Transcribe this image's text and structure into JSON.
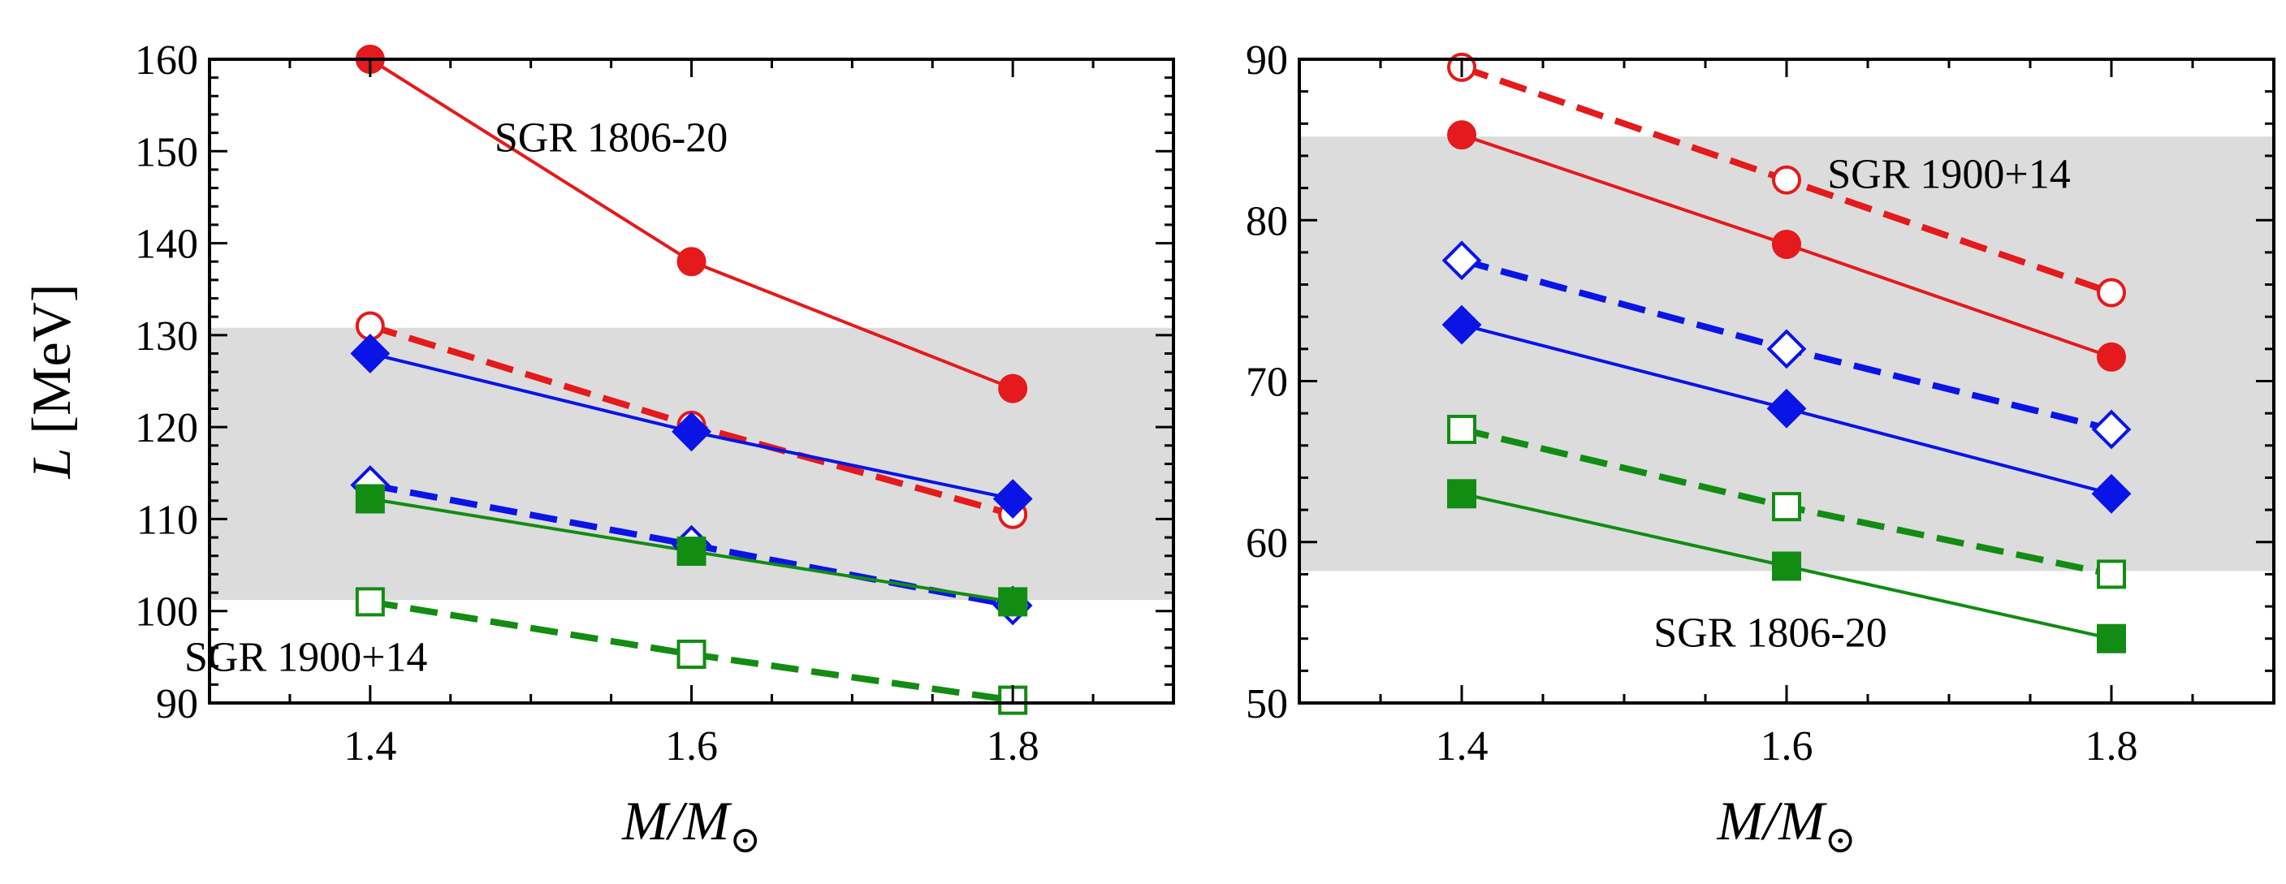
{
  "chart_data": [
    {
      "type": "line",
      "ylabel_italic": "L",
      "ylabel_rest": " [MeV]",
      "xlabel_main": "M/M",
      "xlabel_sub": "⊙",
      "xlim": [
        1.3,
        1.9
      ],
      "ylim": [
        90,
        160
      ],
      "xticks": [
        1.4,
        1.6,
        1.8
      ],
      "yticks": [
        90,
        100,
        110,
        120,
        130,
        140,
        150,
        160
      ],
      "band": [
        101.2,
        130.8
      ],
      "band_color": "#dcdcdc",
      "x": [
        1.4,
        1.6,
        1.8
      ],
      "annotations": [
        {
          "text": "SGR 1806-20",
          "x": 1.55,
          "y": 150
        },
        {
          "text": "SGR 1900+14",
          "x": 1.36,
          "y": 93.5
        }
      ],
      "series": [
        {
          "values": [
            160,
            138,
            124.2
          ],
          "color": "#e41a1c",
          "marker": "circle",
          "filled": true,
          "dashed": false
        },
        {
          "values": [
            131,
            120.2,
            110.5
          ],
          "color": "#e41a1c",
          "marker": "circle",
          "filled": false,
          "dashed": true
        },
        {
          "values": [
            128,
            119.5,
            112.2
          ],
          "color": "#0a14e6",
          "marker": "diamond",
          "filled": true,
          "dashed": false
        },
        {
          "values": [
            113.7,
            107.2,
            100.6
          ],
          "color": "#0a14e6",
          "marker": "diamond",
          "filled": false,
          "dashed": true
        },
        {
          "values": [
            112.2,
            106.5,
            101
          ],
          "color": "#128c12",
          "marker": "square",
          "filled": true,
          "dashed": false
        },
        {
          "values": [
            101,
            95.3,
            90.3
          ],
          "color": "#128c12",
          "marker": "square",
          "filled": false,
          "dashed": true
        }
      ]
    },
    {
      "type": "line",
      "xlabel_main": "M/M",
      "xlabel_sub": "⊙",
      "xlim": [
        1.3,
        1.9
      ],
      "ylim": [
        50,
        90
      ],
      "xticks": [
        1.4,
        1.6,
        1.8
      ],
      "yticks": [
        50,
        60,
        70,
        80,
        90
      ],
      "band": [
        58.2,
        85.2
      ],
      "band_color": "#dcdcdc",
      "x": [
        1.4,
        1.6,
        1.8
      ],
      "annotations": [
        {
          "text": "SGR 1900+14",
          "x": 1.7,
          "y": 82
        },
        {
          "text": "SGR 1806-20",
          "x": 1.59,
          "y": 53.5
        }
      ],
      "series": [
        {
          "values": [
            89.5,
            82.5,
            75.5
          ],
          "color": "#e41a1c",
          "marker": "circle",
          "filled": false,
          "dashed": true
        },
        {
          "values": [
            85.3,
            78.5,
            71.5
          ],
          "color": "#e41a1c",
          "marker": "circle",
          "filled": true,
          "dashed": false
        },
        {
          "values": [
            77.5,
            72,
            67
          ],
          "color": "#0a14e6",
          "marker": "diamond",
          "filled": false,
          "dashed": true
        },
        {
          "values": [
            73.5,
            68.3,
            63
          ],
          "color": "#0a14e6",
          "marker": "diamond",
          "filled": true,
          "dashed": false
        },
        {
          "values": [
            67,
            62.2,
            58
          ],
          "color": "#128c12",
          "marker": "square",
          "filled": false,
          "dashed": true
        },
        {
          "values": [
            63,
            58.5,
            54
          ],
          "color": "#128c12",
          "marker": "square",
          "filled": true,
          "dashed": false
        }
      ]
    }
  ]
}
